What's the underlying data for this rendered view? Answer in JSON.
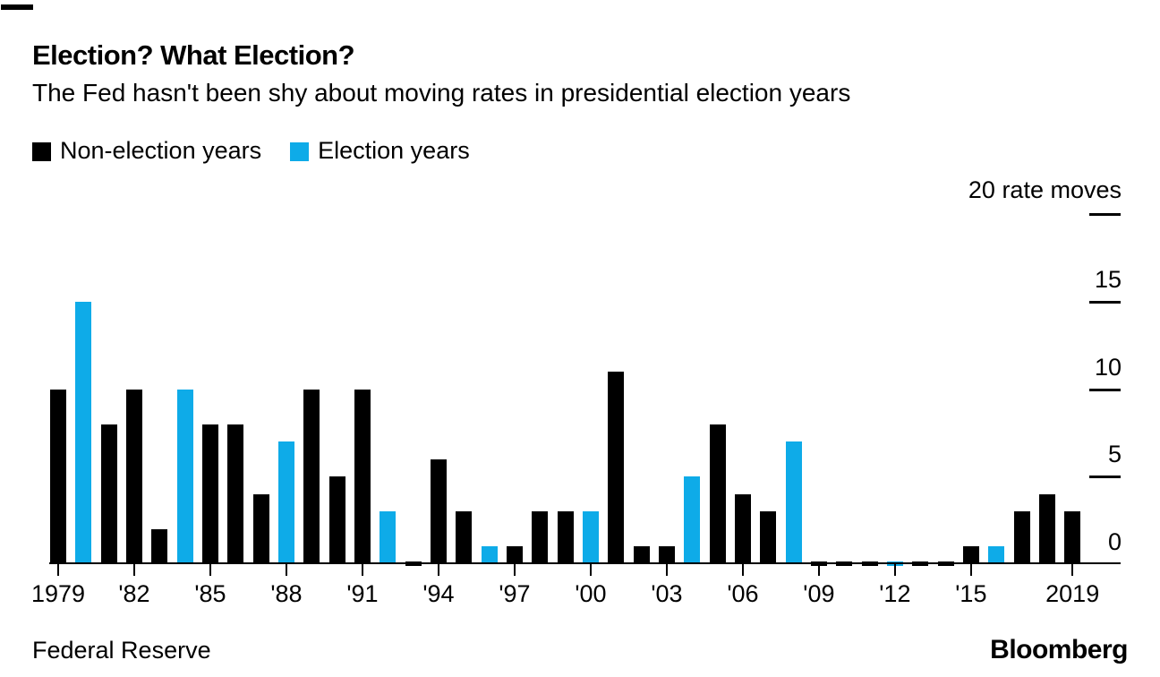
{
  "header": {
    "title": "Election? What Election?",
    "subtitle": "The Fed hasn't been shy about moving rates in presidential election years"
  },
  "legend": {
    "non_election_label": "Non-election years",
    "election_label": "Election years"
  },
  "footer": {
    "source": "Federal Reserve",
    "brand": "Bloomberg"
  },
  "colors": {
    "non_election": "#000000",
    "election": "#0EABE8",
    "background": "#ffffff",
    "axis": "#000000"
  },
  "chart_data": {
    "type": "bar",
    "title": "Election? What Election?",
    "subtitle": "The Fed hasn't been shy about moving rates in presidential election years",
    "ylabel": "rate moves",
    "y_axis_top_label": "20 rate moves",
    "y_ticks": [
      0,
      5,
      10,
      15,
      20
    ],
    "y_tick_labels_visible": [
      "0",
      "5",
      "10",
      "15"
    ],
    "ylim": [
      0,
      20
    ],
    "grid": false,
    "legend_position": "top-left",
    "value_axis_side": "right",
    "x": [
      1979,
      1980,
      1981,
      1982,
      1983,
      1984,
      1985,
      1986,
      1987,
      1988,
      1989,
      1990,
      1991,
      1992,
      1993,
      1994,
      1995,
      1996,
      1997,
      1998,
      1999,
      2000,
      2001,
      2002,
      2003,
      2004,
      2005,
      2006,
      2007,
      2008,
      2009,
      2010,
      2011,
      2012,
      2013,
      2014,
      2015,
      2016,
      2017,
      2018,
      2019
    ],
    "values": [
      10,
      15,
      8,
      10,
      2,
      10,
      8,
      8,
      4,
      7,
      10,
      5,
      10,
      3,
      0,
      6,
      3,
      1,
      1,
      3,
      3,
      3,
      11,
      1,
      1,
      5,
      8,
      4,
      3,
      7,
      0,
      0,
      0,
      0,
      0,
      0,
      1,
      1,
      3,
      4,
      3
    ],
    "election_years": [
      1980,
      1984,
      1988,
      1992,
      1996,
      2000,
      2004,
      2008,
      2012,
      2016
    ],
    "series": [
      {
        "name": "Non-election years",
        "color": "#000000"
      },
      {
        "name": "Election years",
        "color": "#0EABE8"
      }
    ],
    "x_tick_years": [
      1979,
      1982,
      1985,
      1988,
      1991,
      1994,
      1997,
      2000,
      2003,
      2006,
      2009,
      2012,
      2015,
      2019
    ],
    "x_tick_labels": [
      "1979",
      "'82",
      "'85",
      "'88",
      "'91",
      "'94",
      "'97",
      "'00",
      "'03",
      "'06",
      "'09",
      "'12",
      "'15",
      "2019"
    ]
  }
}
